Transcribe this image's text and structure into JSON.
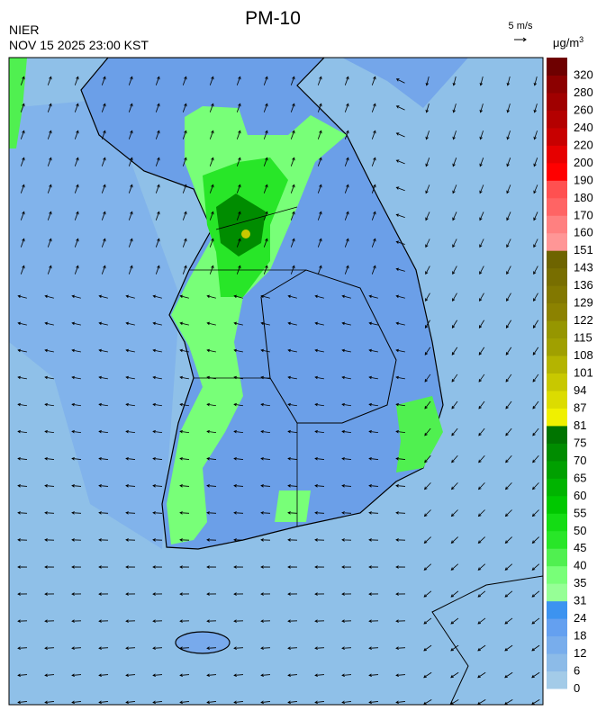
{
  "header": {
    "title": "PM-10",
    "agency": "NIER",
    "datetime": "NOV 15 2025 23:00 KST",
    "wind_scale": "5 m/s"
  },
  "legend": {
    "unit": "μg/m",
    "unit_power": "3",
    "labels": [
      0,
      6,
      12,
      18,
      24,
      31,
      35,
      40,
      45,
      50,
      55,
      60,
      65,
      70,
      75,
      81,
      87,
      94,
      101,
      108,
      115,
      122,
      129,
      136,
      143,
      151,
      160,
      170,
      180,
      190,
      200,
      220,
      240,
      260,
      280,
      320
    ],
    "colors": [
      "#a3cbe8",
      "#8cbbe8",
      "#78adec",
      "#64a0f0",
      "#3c93f0",
      "#96ff96",
      "#78ff78",
      "#50f050",
      "#28e628",
      "#14dc14",
      "#00c800",
      "#00b400",
      "#00a000",
      "#008c00",
      "#007400",
      "#f0f000",
      "#dcdc00",
      "#c8c800",
      "#b4b400",
      "#a0a000",
      "#969600",
      "#8c8200",
      "#827800",
      "#786e00",
      "#6e6400",
      "#ff9696",
      "#ff8080",
      "#ff6464",
      "#ff5050",
      "#ff0000",
      "#e60000",
      "#c80000",
      "#b40000",
      "#a00000",
      "#8c0000",
      "#6e0000"
    ]
  }
}
